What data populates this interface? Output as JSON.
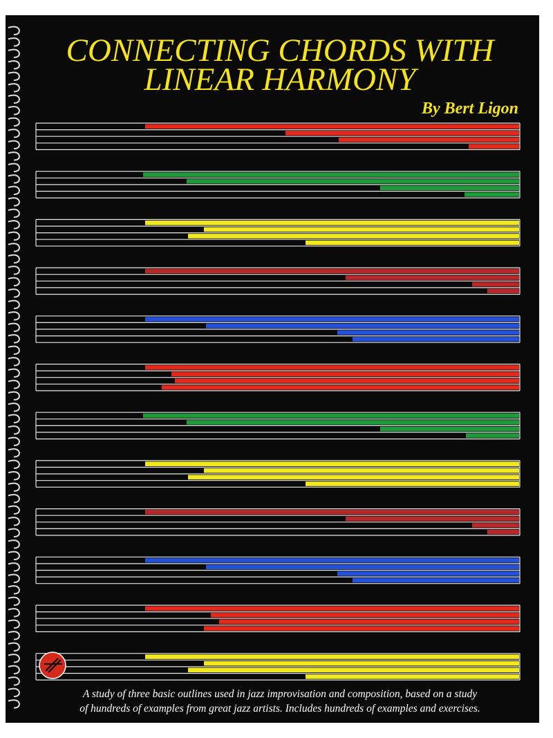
{
  "cover": {
    "title_lines": [
      "CONNECTING CHORDS WITH",
      "LINEAR HARMONY"
    ],
    "author": "By Bert Ligon",
    "description_lines": [
      "A study of three basic outlines used in jazz improvisation and composition, based on a study",
      "of hundreds of examples from great jazz artists. Includes hundreds of examples and exercises."
    ]
  }
}
